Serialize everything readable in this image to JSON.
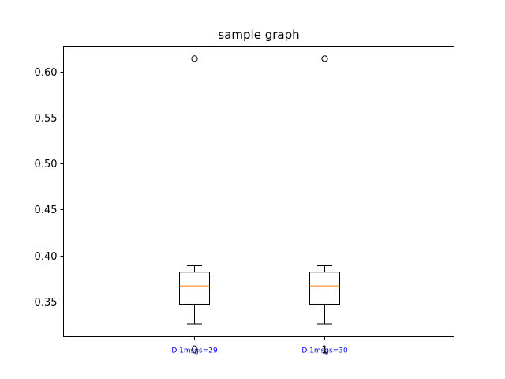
{
  "chart_data": {
    "type": "boxplot",
    "title": "sample graph",
    "xlabel": "",
    "ylabel": "",
    "ylim": [
      0.3118,
      0.6276
    ],
    "yticks": [
      0.35,
      0.4,
      0.45,
      0.5,
      0.55,
      0.6
    ],
    "ytick_labels": [
      "0.35",
      "0.40",
      "0.45",
      "0.50",
      "0.55",
      "0.60"
    ],
    "categories": [
      "0",
      "1"
    ],
    "annotation_color": "#0000ff",
    "median_color": "#ff7f0e",
    "boxes": [
      {
        "label": "0",
        "annotation": "D 1msgs=29",
        "whisker_low": 0.326,
        "q1": 0.347,
        "median": 0.367,
        "q3": 0.382,
        "whisker_high": 0.389,
        "fliers": [
          0.614
        ]
      },
      {
        "label": "1",
        "annotation": "D 1msgs=30",
        "whisker_low": 0.326,
        "q1": 0.347,
        "median": 0.367,
        "q3": 0.382,
        "whisker_high": 0.389,
        "fliers": [
          0.614
        ]
      }
    ],
    "grid": false,
    "legend": "none"
  }
}
